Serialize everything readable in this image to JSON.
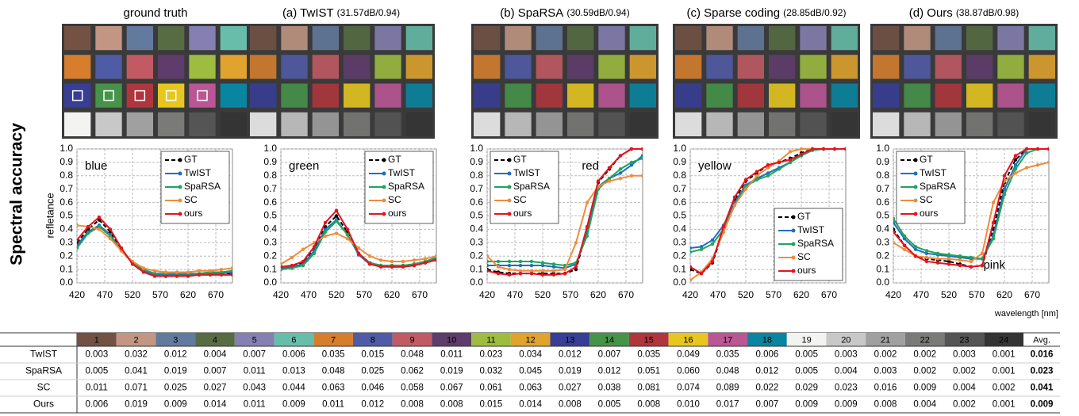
{
  "side_label": "Spectral accuracy",
  "panels": [
    {
      "title": "ground truth"
    },
    {
      "title": "(a) TwIST",
      "metric": "(31.57dB/0.94)"
    },
    {
      "title": "(b) SpaRSA",
      "metric": "(30.59dB/0.94)"
    },
    {
      "title": "(c) Sparse coding",
      "metric": "(28.85dB/0.92)"
    },
    {
      "title": "(d) Ours",
      "metric": "(38.87dB/0.98)"
    }
  ],
  "patches": [
    "#735244",
    "#c29682",
    "#627a9d",
    "#576c43",
    "#8580b1",
    "#67bdaa",
    "#d67e2c",
    "#505ba6",
    "#c15a63",
    "#5e3c6c",
    "#9dbc40",
    "#e0a32e",
    "#383d96",
    "#469449",
    "#af363c",
    "#e7c71f",
    "#bb5695",
    "#0885a1",
    "#f3f3f2",
    "#c8c8c8",
    "#a0a0a0",
    "#7a7a79",
    "#555555",
    "#343434"
  ],
  "chart_data": [
    {
      "type": "line",
      "annotation": "blue",
      "annotation_corner": "upper left",
      "legend": "upper right",
      "ylabel": "refletance",
      "x": [
        420,
        440,
        460,
        480,
        500,
        520,
        540,
        560,
        580,
        600,
        620,
        640,
        660,
        680,
        700
      ],
      "xlim": [
        420,
        700
      ],
      "ylim": [
        0,
        1
      ],
      "xticks": [
        420,
        470,
        520,
        570,
        620,
        670
      ],
      "yticks": [
        {
          "value": 0,
          "label": "0.0"
        },
        0.1,
        0.2,
        0.3,
        0.4,
        0.5,
        0.6,
        0.7,
        0.8,
        0.9,
        {
          "value": 1,
          "label": "1.0"
        }
      ],
      "grid": true,
      "series": [
        {
          "name": "GT",
          "color": "#000000",
          "dashed": true,
          "values": [
            0.3,
            0.4,
            0.47,
            0.38,
            0.25,
            0.15,
            0.09,
            0.06,
            0.05,
            0.06,
            0.06,
            0.06,
            0.07,
            0.07,
            0.07
          ]
        },
        {
          "name": "TwIST",
          "color": "#1f6fc0",
          "values": [
            0.28,
            0.38,
            0.43,
            0.36,
            0.24,
            0.15,
            0.09,
            0.06,
            0.06,
            0.06,
            0.06,
            0.06,
            0.07,
            0.07,
            0.08
          ]
        },
        {
          "name": "SpaRSA",
          "color": "#1fa55a",
          "values": [
            0.26,
            0.37,
            0.42,
            0.35,
            0.24,
            0.15,
            0.1,
            0.07,
            0.07,
            0.07,
            0.07,
            0.07,
            0.08,
            0.08,
            0.09
          ]
        },
        {
          "name": "SC",
          "color": "#f08c3c",
          "values": [
            0.43,
            0.42,
            0.4,
            0.33,
            0.24,
            0.16,
            0.11,
            0.09,
            0.08,
            0.08,
            0.08,
            0.09,
            0.09,
            0.1,
            0.11
          ]
        },
        {
          "name": "ours",
          "color": "#e8121c",
          "values": [
            0.32,
            0.42,
            0.49,
            0.4,
            0.26,
            0.14,
            0.08,
            0.05,
            0.05,
            0.05,
            0.05,
            0.06,
            0.06,
            0.06,
            0.06
          ]
        }
      ]
    },
    {
      "type": "line",
      "annotation": "green",
      "annotation_corner": "upper left",
      "legend": "upper right",
      "x": [
        420,
        440,
        460,
        480,
        500,
        520,
        540,
        560,
        580,
        600,
        620,
        640,
        660,
        680,
        700
      ],
      "xlim": [
        420,
        700
      ],
      "ylim": [
        0,
        1
      ],
      "xticks": [
        420,
        470,
        520,
        570,
        620,
        670
      ],
      "yticks": [
        {
          "value": 0,
          "label": "0.0"
        },
        0.1,
        0.2,
        0.3,
        0.4,
        0.5,
        0.6,
        0.7,
        0.8,
        0.9,
        {
          "value": 1,
          "label": "1.0"
        }
      ],
      "grid": true,
      "series": [
        {
          "name": "GT",
          "color": "#000000",
          "dashed": true,
          "values": [
            0.11,
            0.12,
            0.15,
            0.25,
            0.42,
            0.5,
            0.38,
            0.22,
            0.15,
            0.13,
            0.13,
            0.13,
            0.14,
            0.16,
            0.18
          ]
        },
        {
          "name": "TwIST",
          "color": "#1f6fc0",
          "values": [
            0.11,
            0.12,
            0.14,
            0.24,
            0.4,
            0.47,
            0.36,
            0.21,
            0.14,
            0.13,
            0.12,
            0.12,
            0.13,
            0.15,
            0.18
          ]
        },
        {
          "name": "SpaRSA",
          "color": "#1fa55a",
          "values": [
            0.1,
            0.11,
            0.13,
            0.22,
            0.38,
            0.46,
            0.36,
            0.22,
            0.15,
            0.13,
            0.13,
            0.13,
            0.14,
            0.16,
            0.19
          ]
        },
        {
          "name": "SC",
          "color": "#f08c3c",
          "values": [
            0.14,
            0.19,
            0.25,
            0.3,
            0.35,
            0.37,
            0.33,
            0.26,
            0.2,
            0.17,
            0.16,
            0.16,
            0.17,
            0.18,
            0.2
          ]
        },
        {
          "name": "ours",
          "color": "#e8121c",
          "values": [
            0.12,
            0.13,
            0.16,
            0.27,
            0.45,
            0.54,
            0.4,
            0.22,
            0.14,
            0.12,
            0.12,
            0.12,
            0.13,
            0.15,
            0.17
          ]
        }
      ]
    },
    {
      "type": "line",
      "annotation": "red",
      "annotation_corner": "upper right",
      "legend": "upper left",
      "x": [
        420,
        440,
        460,
        480,
        500,
        520,
        540,
        560,
        580,
        600,
        620,
        640,
        660,
        680,
        700
      ],
      "xlim": [
        420,
        700
      ],
      "ylim": [
        0,
        1
      ],
      "xticks": [
        420,
        470,
        520,
        570,
        620,
        670
      ],
      "yticks": [
        {
          "value": 0,
          "label": "0.0"
        },
        0.1,
        0.2,
        0.3,
        0.4,
        0.5,
        0.6,
        0.7,
        0.8,
        0.9,
        {
          "value": 1,
          "label": "1.0"
        }
      ],
      "grid": true,
      "series": [
        {
          "name": "GT",
          "color": "#000000",
          "dashed": true,
          "values": [
            0.1,
            0.08,
            0.07,
            0.07,
            0.07,
            0.07,
            0.07,
            0.07,
            0.1,
            0.4,
            0.75,
            0.85,
            0.95,
            1.0,
            1.0
          ]
        },
        {
          "name": "TwIST",
          "color": "#1f6fc0",
          "values": [
            0.13,
            0.13,
            0.13,
            0.13,
            0.13,
            0.13,
            0.12,
            0.11,
            0.14,
            0.38,
            0.72,
            0.78,
            0.82,
            0.88,
            0.95
          ]
        },
        {
          "name": "SpaRSA",
          "color": "#1fa55a",
          "values": [
            0.16,
            0.16,
            0.16,
            0.16,
            0.16,
            0.15,
            0.14,
            0.13,
            0.15,
            0.35,
            0.7,
            0.78,
            0.85,
            0.9,
            0.93
          ]
        },
        {
          "name": "SC",
          "color": "#f08c3c",
          "values": [
            0.2,
            0.12,
            0.1,
            0.09,
            0.09,
            0.09,
            0.09,
            0.1,
            0.3,
            0.6,
            0.72,
            0.76,
            0.78,
            0.8,
            0.8
          ]
        },
        {
          "name": "ours",
          "color": "#e8121c",
          "values": [
            0.09,
            0.07,
            0.06,
            0.07,
            0.07,
            0.06,
            0.06,
            0.07,
            0.12,
            0.42,
            0.76,
            0.86,
            0.95,
            1.0,
            1.0
          ]
        }
      ]
    },
    {
      "type": "line",
      "annotation": "yellow",
      "annotation_corner": "upper left",
      "legend": "lower right",
      "x": [
        420,
        440,
        460,
        480,
        500,
        520,
        540,
        560,
        580,
        600,
        620,
        640,
        660,
        680,
        700
      ],
      "xlim": [
        420,
        700
      ],
      "ylim": [
        0,
        1
      ],
      "xticks": [
        420,
        470,
        520,
        570,
        620,
        670
      ],
      "yticks": [
        {
          "value": 0,
          "label": "0.0"
        },
        0.1,
        0.2,
        0.3,
        0.4,
        0.5,
        0.6,
        0.7,
        0.8,
        0.9,
        {
          "value": 1,
          "label": "1.0"
        }
      ],
      "grid": true,
      "series": [
        {
          "name": "GT",
          "color": "#000000",
          "dashed": true,
          "values": [
            0.1,
            0.07,
            0.15,
            0.4,
            0.62,
            0.76,
            0.82,
            0.88,
            0.9,
            0.93,
            0.97,
            1.0,
            1.0,
            1.0,
            1.0
          ]
        },
        {
          "name": "TwIST",
          "color": "#1f6fc0",
          "values": [
            0.26,
            0.27,
            0.32,
            0.43,
            0.6,
            0.73,
            0.78,
            0.82,
            0.86,
            0.9,
            0.96,
            1.0,
            1.0,
            1.0,
            1.0
          ]
        },
        {
          "name": "SpaRSA",
          "color": "#1fa55a",
          "values": [
            0.23,
            0.25,
            0.29,
            0.4,
            0.58,
            0.72,
            0.77,
            0.8,
            0.85,
            0.9,
            0.95,
            0.99,
            1.0,
            1.0,
            1.0
          ]
        },
        {
          "name": "SC",
          "color": "#f08c3c",
          "values": [
            0.02,
            0.08,
            0.18,
            0.38,
            0.58,
            0.7,
            0.8,
            0.86,
            0.91,
            0.98,
            1.0,
            1.0,
            1.0,
            1.0,
            1.0
          ]
        },
        {
          "name": "ours",
          "color": "#e8121c",
          "values": [
            0.12,
            0.07,
            0.16,
            0.42,
            0.64,
            0.77,
            0.83,
            0.88,
            0.9,
            0.92,
            0.96,
            1.0,
            1.0,
            1.0,
            1.0
          ]
        }
      ]
    },
    {
      "type": "line",
      "annotation": "pink",
      "annotation_corner": "lower right",
      "legend": "upper left",
      "xlabel": "wavelength [nm]",
      "x": [
        420,
        440,
        460,
        480,
        500,
        520,
        540,
        560,
        580,
        600,
        620,
        640,
        660,
        680,
        700
      ],
      "xlim": [
        420,
        700
      ],
      "ylim": [
        0,
        1
      ],
      "xticks": [
        420,
        470,
        520,
        570,
        620,
        670
      ],
      "yticks": [
        {
          "value": 0,
          "label": "0.0"
        },
        0.1,
        0.2,
        0.3,
        0.4,
        0.5,
        0.6,
        0.7,
        0.8,
        0.9,
        {
          "value": 1,
          "label": "1.0"
        }
      ],
      "grid": true,
      "series": [
        {
          "name": "GT",
          "color": "#000000",
          "dashed": true,
          "values": [
            0.4,
            0.28,
            0.2,
            0.18,
            0.17,
            0.16,
            0.14,
            0.12,
            0.13,
            0.4,
            0.75,
            0.92,
            1.0,
            1.0,
            1.0
          ]
        },
        {
          "name": "TwIST",
          "color": "#1f6fc0",
          "values": [
            0.45,
            0.33,
            0.25,
            0.22,
            0.21,
            0.2,
            0.19,
            0.18,
            0.18,
            0.35,
            0.7,
            0.88,
            1.0,
            1.0,
            1.0
          ]
        },
        {
          "name": "SpaRSA",
          "color": "#1fa55a",
          "values": [
            0.48,
            0.35,
            0.27,
            0.24,
            0.22,
            0.21,
            0.2,
            0.19,
            0.18,
            0.33,
            0.66,
            0.85,
            0.97,
            1.0,
            1.0
          ]
        },
        {
          "name": "SC",
          "color": "#f08c3c",
          "values": [
            0.3,
            0.25,
            0.2,
            0.19,
            0.18,
            0.18,
            0.17,
            0.16,
            0.22,
            0.6,
            0.76,
            0.82,
            0.86,
            0.88,
            0.9
          ]
        },
        {
          "name": "ours",
          "color": "#e8121c",
          "values": [
            0.38,
            0.28,
            0.2,
            0.16,
            0.15,
            0.14,
            0.13,
            0.12,
            0.13,
            0.45,
            0.8,
            0.95,
            1.0,
            1.0,
            1.0
          ]
        }
      ]
    }
  ],
  "table": {
    "header": [
      "1",
      "2",
      "3",
      "4",
      "5",
      "6",
      "7",
      "8",
      "9",
      "10",
      "11",
      "12",
      "13",
      "14",
      "15",
      "16",
      "17",
      "18",
      "19",
      "20",
      "21",
      "22",
      "23",
      "24",
      "Avg."
    ],
    "rows": [
      {
        "label": "TwIST",
        "cells": [
          "0.003",
          "0.032",
          "0.012",
          "0.004",
          "0.007",
          "0.006",
          "0.035",
          "0.015",
          "0.048",
          "0.011",
          "0.023",
          "0.034",
          "0.012",
          "0.007",
          "0.035",
          "0.049",
          "0.035",
          "0.006",
          "0.005",
          "0.003",
          "0.002",
          "0.002",
          "0.003",
          "0.001",
          "0.016"
        ],
        "colors": [
          "red",
          "blue",
          "blue",
          "red",
          "red",
          "red",
          "blue",
          "blue",
          "blue",
          "blue",
          "blue",
          "blue",
          "blue",
          "blue",
          "blue",
          "blue",
          "blue",
          "red",
          "red",
          "red",
          "red",
          "red",
          "black",
          "red",
          "blue"
        ]
      },
      {
        "label": "SpaRSA",
        "cells": [
          "0.005",
          "0.041",
          "0.019",
          "0.007",
          "0.011",
          "0.013",
          "0.048",
          "0.025",
          "0.062",
          "0.019",
          "0.032",
          "0.045",
          "0.019",
          "0.012",
          "0.051",
          "0.060",
          "0.048",
          "0.012",
          "0.005",
          "0.004",
          "0.003",
          "0.002",
          "0.002",
          "0.001",
          "0.023"
        ],
        "colors": [
          "blue",
          "black",
          "black",
          "blue",
          "black",
          "black",
          "black",
          "black",
          "black",
          "black",
          "black",
          "black",
          "black",
          "black",
          "black",
          "black",
          "black",
          "black",
          "red",
          "blue",
          "blue",
          "red",
          "red",
          "red",
          "black"
        ]
      },
      {
        "label": "SC",
        "cells": [
          "0.011",
          "0.071",
          "0.025",
          "0.027",
          "0.043",
          "0.044",
          "0.063",
          "0.046",
          "0.058",
          "0.067",
          "0.061",
          "0.063",
          "0.027",
          "0.038",
          "0.081",
          "0.074",
          "0.089",
          "0.022",
          "0.029",
          "0.023",
          "0.016",
          "0.009",
          "0.004",
          "0.002",
          "0.041"
        ],
        "colors": [
          "black",
          "black",
          "black",
          "black",
          "black",
          "black",
          "black",
          "black",
          "black",
          "black",
          "black",
          "black",
          "black",
          "black",
          "black",
          "black",
          "black",
          "black",
          "black",
          "black",
          "black",
          "black",
          "black",
          "black",
          "black"
        ]
      },
      {
        "label": "Ours",
        "cells": [
          "0.006",
          "0.019",
          "0.009",
          "0.014",
          "0.011",
          "0.009",
          "0.011",
          "0.012",
          "0.008",
          "0.008",
          "0.015",
          "0.014",
          "0.008",
          "0.005",
          "0.008",
          "0.010",
          "0.017",
          "0.007",
          "0.009",
          "0.009",
          "0.008",
          "0.004",
          "0.002",
          "0.001",
          "0.009"
        ],
        "colors": [
          "black",
          "red",
          "red",
          "black",
          "blue",
          "blue",
          "red",
          "red",
          "red",
          "red",
          "red",
          "red",
          "red",
          "red",
          "red",
          "red",
          "red",
          "blue",
          "black",
          "black",
          "black",
          "black",
          "red",
          "red",
          "red"
        ]
      }
    ]
  }
}
